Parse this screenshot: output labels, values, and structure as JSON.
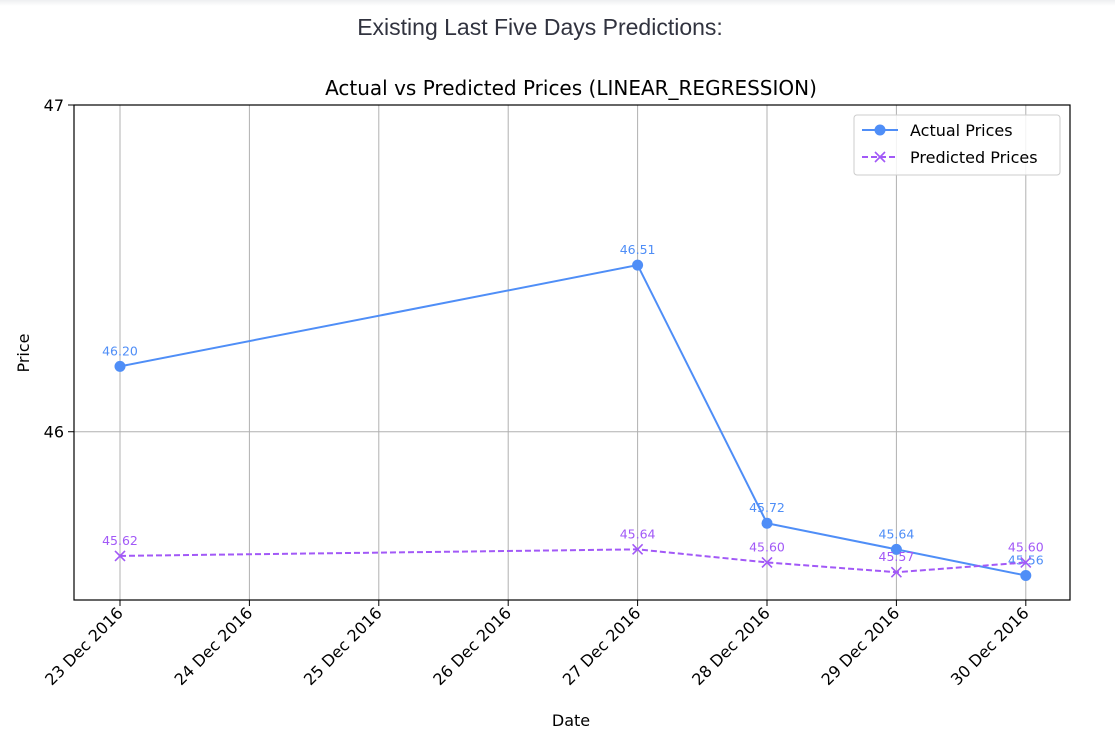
{
  "heading": "Existing Last Five Days Predictions:",
  "chart_data": {
    "type": "line",
    "title": "Actual vs Predicted Prices (LINEAR_REGRESSION)",
    "xlabel": "Date",
    "ylabel": "Price",
    "x": [
      "23 Dec 2016",
      "27 Dec 2016",
      "28 Dec 2016",
      "29 Dec 2016",
      "30 Dec 2016"
    ],
    "x_tick_labels": [
      "23 Dec 2016",
      "24 Dec 2016",
      "25 Dec 2016",
      "26 Dec 2016",
      "27 Dec 2016",
      "28 Dec 2016",
      "29 Dec 2016",
      "30 Dec 2016"
    ],
    "y_ticks": [
      "46",
      "47"
    ],
    "ylim": [
      45.485,
      47.0
    ],
    "grid": true,
    "legend_position": "top-right",
    "series": [
      {
        "name": "Actual Prices",
        "values": [
          46.2,
          46.51,
          45.72,
          45.64,
          45.56
        ],
        "labels": [
          "46.20",
          "46.51",
          "45.72",
          "45.64",
          "45.56"
        ],
        "color": "#4f8ef7",
        "marker": "circle",
        "linestyle": "solid"
      },
      {
        "name": "Predicted Prices",
        "values": [
          45.62,
          45.64,
          45.6,
          45.57,
          45.6
        ],
        "labels": [
          "45.62",
          "45.64",
          "45.60",
          "45.57",
          "45.60"
        ],
        "color": "#a259f7",
        "marker": "x",
        "linestyle": "dashed"
      }
    ]
  }
}
